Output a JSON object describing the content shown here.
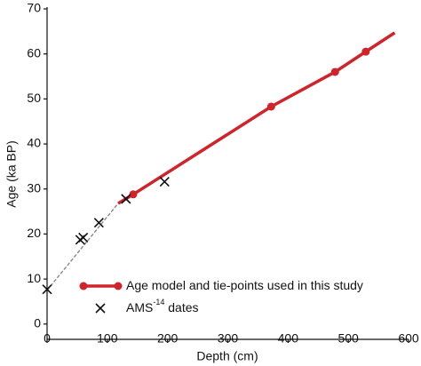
{
  "chart_data": {
    "type": "line",
    "x_label": "Depth (cm)",
    "y_label": "Age (ka BP)",
    "xlim": [
      0,
      600
    ],
    "ylim": [
      -3.4,
      70
    ],
    "xticks": [
      0,
      100,
      200,
      300,
      400,
      500,
      600
    ],
    "yticks": [
      0,
      10,
      20,
      30,
      40,
      50,
      60,
      70
    ],
    "series": [
      {
        "name": "Age model and tie-points used in this study",
        "color": "#d0232a",
        "style": "solid",
        "marker": "circle",
        "x": [
          118,
          143,
          372,
          478,
          529,
          577
        ],
        "values": [
          26.8,
          28.8,
          48.3,
          56,
          60.5,
          64.7
        ],
        "markers": [
          false,
          true,
          true,
          true,
          true,
          false
        ]
      },
      {
        "color": "#888888",
        "style": "dashed",
        "marker": "none",
        "x": [
          0,
          118
        ],
        "values": [
          7.5,
          26.8
        ]
      },
      {
        "name": "AMS",
        "name_sup": "-14",
        "name_suffix": " dates",
        "color": "#111111",
        "style": "none",
        "marker": "x",
        "x": [
          0,
          55,
          60,
          86,
          131,
          195
        ],
        "values": [
          7.7,
          18.7,
          19.2,
          22.5,
          27.8,
          31.6
        ]
      }
    ]
  }
}
